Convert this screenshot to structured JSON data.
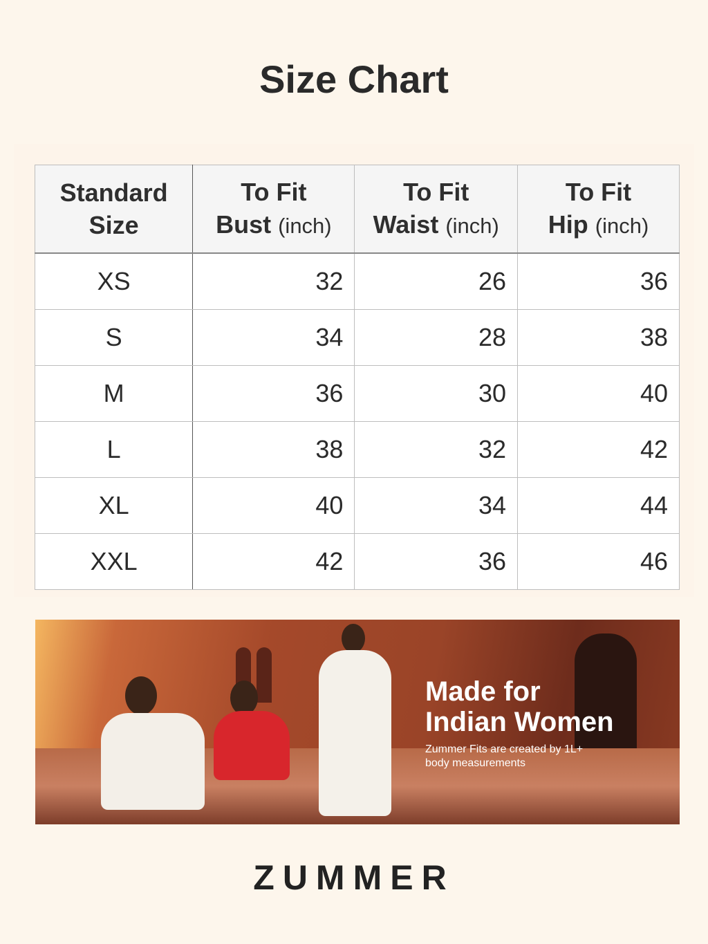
{
  "title": "Size Chart",
  "table": {
    "headers": [
      {
        "line1": "Standard",
        "line2": "Size",
        "unit": ""
      },
      {
        "line1": "To Fit",
        "line2": "Bust",
        "unit": "(inch)"
      },
      {
        "line1": "To Fit",
        "line2": "Waist",
        "unit": "(inch)"
      },
      {
        "line1": "To Fit",
        "line2": "Hip",
        "unit": "(inch)"
      }
    ],
    "rows": [
      [
        "XS",
        "32",
        "26",
        "36"
      ],
      [
        "S",
        "34",
        "28",
        "38"
      ],
      [
        "M",
        "36",
        "30",
        "40"
      ],
      [
        "L",
        "38",
        "32",
        "42"
      ],
      [
        "XL",
        "40",
        "34",
        "44"
      ],
      [
        "XXL",
        "42",
        "36",
        "46"
      ]
    ]
  },
  "banner": {
    "heading_line1": "Made for",
    "heading_line2": "Indian Women",
    "subtext_line1": "Zummer Fits are created by 1L+",
    "subtext_line2": "body measurements"
  },
  "brand": "ZUMMER"
}
